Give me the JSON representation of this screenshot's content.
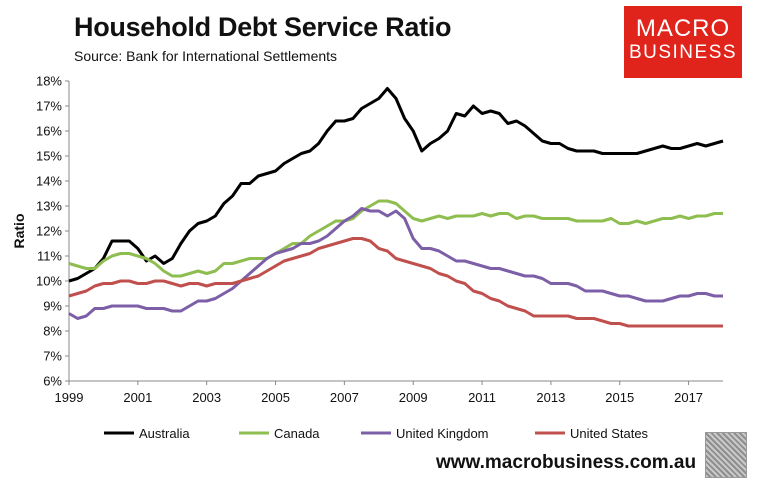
{
  "header": {
    "title": "Household Debt Service Ratio",
    "subtitle": "Source: Bank for International Settlements"
  },
  "branding": {
    "logo_line1": "MACRO",
    "logo_line2": "BUSINESS",
    "website": "www.macrobusiness.com.au",
    "logo_color": "#e0231b"
  },
  "chart_data": {
    "type": "line",
    "title": "Household Debt Service Ratio",
    "xlabel": "",
    "ylabel": "Ratio",
    "xlim": [
      1999,
      2018
    ],
    "ylim": [
      6,
      18
    ],
    "yticks": [
      6,
      7,
      8,
      9,
      10,
      11,
      12,
      13,
      14,
      15,
      16,
      17,
      18
    ],
    "ytick_labels": [
      "6%",
      "7%",
      "8%",
      "9%",
      "10%",
      "11%",
      "12%",
      "13%",
      "14%",
      "15%",
      "16%",
      "17%",
      "18%"
    ],
    "xticks": [
      1999,
      2001,
      2003,
      2005,
      2007,
      2009,
      2011,
      2013,
      2015,
      2017
    ],
    "xtick_labels": [
      "1999",
      "2001",
      "2003",
      "2005",
      "2007",
      "2009",
      "2011",
      "2013",
      "2015",
      "2017"
    ],
    "grid": false,
    "legend_position": "bottom",
    "x": [
      1999.0,
      1999.25,
      1999.5,
      1999.75,
      2000.0,
      2000.25,
      2000.5,
      2000.75,
      2001.0,
      2001.25,
      2001.5,
      2001.75,
      2002.0,
      2002.25,
      2002.5,
      2002.75,
      2003.0,
      2003.25,
      2003.5,
      2003.75,
      2004.0,
      2004.25,
      2004.5,
      2004.75,
      2005.0,
      2005.25,
      2005.5,
      2005.75,
      2006.0,
      2006.25,
      2006.5,
      2006.75,
      2007.0,
      2007.25,
      2007.5,
      2007.75,
      2008.0,
      2008.25,
      2008.5,
      2008.75,
      2009.0,
      2009.25,
      2009.5,
      2009.75,
      2010.0,
      2010.25,
      2010.5,
      2010.75,
      2011.0,
      2011.25,
      2011.5,
      2011.75,
      2012.0,
      2012.25,
      2012.5,
      2012.75,
      2013.0,
      2013.25,
      2013.5,
      2013.75,
      2014.0,
      2014.25,
      2014.5,
      2014.75,
      2015.0,
      2015.25,
      2015.5,
      2015.75,
      2016.0,
      2016.25,
      2016.5,
      2016.75,
      2017.0,
      2017.25,
      2017.5,
      2017.75,
      2018.0
    ],
    "series": [
      {
        "name": "Australia",
        "color": "#000000",
        "values": [
          10.0,
          10.1,
          10.3,
          10.5,
          10.9,
          11.6,
          11.6,
          11.6,
          11.3,
          10.8,
          11.0,
          10.7,
          10.9,
          11.5,
          12.0,
          12.3,
          12.4,
          12.6,
          13.1,
          13.4,
          13.9,
          13.9,
          14.2,
          14.3,
          14.4,
          14.7,
          14.9,
          15.1,
          15.2,
          15.5,
          16.0,
          16.4,
          16.4,
          16.5,
          16.9,
          17.1,
          17.3,
          17.7,
          17.3,
          16.5,
          16.0,
          15.2,
          15.5,
          15.7,
          16.0,
          16.7,
          16.6,
          17.0,
          16.7,
          16.8,
          16.7,
          16.3,
          16.4,
          16.2,
          15.9,
          15.6,
          15.5,
          15.5,
          15.3,
          15.2,
          15.2,
          15.2,
          15.1,
          15.1,
          15.1,
          15.1,
          15.1,
          15.2,
          15.3,
          15.4,
          15.3,
          15.3,
          15.4,
          15.5,
          15.4,
          15.5,
          15.6
        ]
      },
      {
        "name": "Canada",
        "color": "#8fbe50",
        "values": [
          10.7,
          10.6,
          10.5,
          10.5,
          10.8,
          11.0,
          11.1,
          11.1,
          11.0,
          10.9,
          10.7,
          10.4,
          10.2,
          10.2,
          10.3,
          10.4,
          10.3,
          10.4,
          10.7,
          10.7,
          10.8,
          10.9,
          10.9,
          10.9,
          11.1,
          11.3,
          11.5,
          11.5,
          11.8,
          12.0,
          12.2,
          12.4,
          12.4,
          12.5,
          12.8,
          13.0,
          13.2,
          13.2,
          13.1,
          12.8,
          12.5,
          12.4,
          12.5,
          12.6,
          12.5,
          12.6,
          12.6,
          12.6,
          12.7,
          12.6,
          12.7,
          12.7,
          12.5,
          12.6,
          12.6,
          12.5,
          12.5,
          12.5,
          12.5,
          12.4,
          12.4,
          12.4,
          12.4,
          12.5,
          12.3,
          12.3,
          12.4,
          12.3,
          12.4,
          12.5,
          12.5,
          12.6,
          12.5,
          12.6,
          12.6,
          12.7,
          12.7
        ]
      },
      {
        "name": "United Kingdom",
        "color": "#7d5fa8",
        "values": [
          8.7,
          8.5,
          8.6,
          8.9,
          8.9,
          9.0,
          9.0,
          9.0,
          9.0,
          8.9,
          8.9,
          8.9,
          8.8,
          8.8,
          9.0,
          9.2,
          9.2,
          9.3,
          9.5,
          9.7,
          10.0,
          10.3,
          10.6,
          10.9,
          11.1,
          11.2,
          11.3,
          11.5,
          11.5,
          11.6,
          11.8,
          12.1,
          12.4,
          12.6,
          12.9,
          12.8,
          12.8,
          12.6,
          12.8,
          12.5,
          11.7,
          11.3,
          11.3,
          11.2,
          11.0,
          10.8,
          10.8,
          10.7,
          10.6,
          10.5,
          10.5,
          10.4,
          10.3,
          10.2,
          10.2,
          10.1,
          9.9,
          9.9,
          9.9,
          9.8,
          9.6,
          9.6,
          9.6,
          9.5,
          9.4,
          9.4,
          9.3,
          9.2,
          9.2,
          9.2,
          9.3,
          9.4,
          9.4,
          9.5,
          9.5,
          9.4,
          9.4
        ]
      },
      {
        "name": "United States",
        "color": "#c0504d",
        "values": [
          9.4,
          9.5,
          9.6,
          9.8,
          9.9,
          9.9,
          10.0,
          10.0,
          9.9,
          9.9,
          10.0,
          10.0,
          9.9,
          9.8,
          9.9,
          9.9,
          9.8,
          9.9,
          9.9,
          9.9,
          10.0,
          10.1,
          10.2,
          10.4,
          10.6,
          10.8,
          10.9,
          11.0,
          11.1,
          11.3,
          11.4,
          11.5,
          11.6,
          11.7,
          11.7,
          11.6,
          11.3,
          11.2,
          10.9,
          10.8,
          10.7,
          10.6,
          10.5,
          10.3,
          10.2,
          10.0,
          9.9,
          9.6,
          9.5,
          9.3,
          9.2,
          9.0,
          8.9,
          8.8,
          8.6,
          8.6,
          8.6,
          8.6,
          8.6,
          8.5,
          8.5,
          8.5,
          8.4,
          8.3,
          8.3,
          8.2,
          8.2,
          8.2,
          8.2,
          8.2,
          8.2,
          8.2,
          8.2,
          8.2,
          8.2,
          8.2,
          8.2
        ]
      }
    ]
  }
}
